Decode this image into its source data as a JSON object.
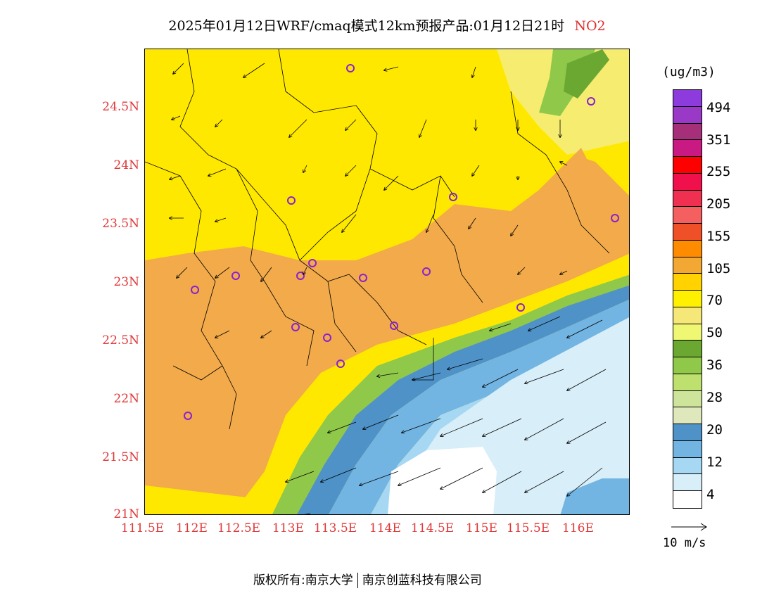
{
  "title": "2025年01月12日WRF/cmaq模式12km预报产品:01月12日21时",
  "pollutant": "NO2",
  "unit": "(ug/m3)",
  "y_axis_labels": [
    "24.5N",
    "24N",
    "23.5N",
    "23N",
    "22.5N",
    "22N",
    "21.5N",
    "21N"
  ],
  "x_axis_labels": [
    "111.5E",
    "112E",
    "112.5E",
    "113E",
    "113.5E",
    "114E",
    "114.5E",
    "115E",
    "115.5E",
    "116E"
  ],
  "legend": {
    "colors": [
      "#8d3bdd",
      "#9a38c8",
      "#a52f78",
      "#c81a82",
      "#ff0000",
      "#f0104c",
      "#f03050",
      "#f46060",
      "#f05028",
      "#ff8c00",
      "#f2a832",
      "#ffd200",
      "#fff000",
      "#f6e878",
      "#f0f873",
      "#6aa832",
      "#90c84a",
      "#bee06e",
      "#cee49a",
      "#dfe8bc",
      "#4e92c8",
      "#72b4e2",
      "#a6d8f4",
      "#d8eef8",
      "#ffffff"
    ],
    "labels": [
      "494",
      "351",
      "255",
      "205",
      "155",
      "105",
      "70",
      "50",
      "36",
      "28",
      "20",
      "12",
      "4"
    ]
  },
  "wind_reference": "10 m/s",
  "footer": {
    "left": "版权所有:南京大学",
    "right": "南京创蓝科技有限公司"
  },
  "colors": {
    "ocean_white": "#ffffff",
    "ocean_light": "#d8eef8",
    "ocean_mid": "#a6d8f4",
    "ocean_blue": "#72b4e2",
    "ocean_deep": "#4e92c8",
    "coast_green": "#90c84a",
    "land_yellow": "#ffe800",
    "land_orange": "#f2aa4a",
    "label_red": "#e03838"
  }
}
